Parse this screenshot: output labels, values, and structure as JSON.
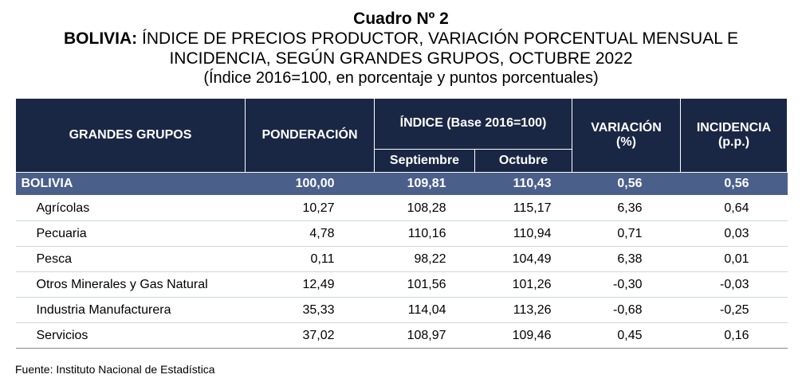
{
  "title": {
    "line1": "Cuadro Nº 2",
    "line2_bold": "BOLIVIA:",
    "line2_rest": " ÍNDICE DE PRECIOS PRODUCTOR, VARIACIÓN PORCENTUAL MENSUAL E",
    "line3": "INCIDENCIA, SEGÚN GRANDES GRUPOS, OCTUBRE 2022",
    "line4": "(Índice 2016=100, en porcentaje y puntos porcentuales)"
  },
  "headers": {
    "grupos": "GRANDES GRUPOS",
    "ponderacion": "PONDERACIÓN",
    "indice": "ÍNDICE (Base 2016=100)",
    "septiembre": "Septiembre",
    "octubre": "Octubre",
    "variacion_1": "VARIACIÓN",
    "variacion_2": "(%)",
    "incidencia_1": "INCIDENCIA",
    "incidencia_2": "(p.p.)"
  },
  "total": {
    "name": "BOLIVIA",
    "ponderacion": "100,00",
    "septiembre": "109,81",
    "octubre": "110,43",
    "variacion": "0,56",
    "incidencia": "0,56"
  },
  "rows": [
    {
      "name": "Agrícolas",
      "ponderacion": "10,27",
      "septiembre": "108,28",
      "octubre": "115,17",
      "variacion": "6,36",
      "incidencia": "0,64"
    },
    {
      "name": "Pecuaria",
      "ponderacion": "4,78",
      "septiembre": "110,16",
      "octubre": "110,94",
      "variacion": "0,71",
      "incidencia": "0,03"
    },
    {
      "name": "Pesca",
      "ponderacion": "0,11",
      "septiembre": "98,22",
      "octubre": "104,49",
      "variacion": "6,38",
      "incidencia": "0,01"
    },
    {
      "name": "Otros Minerales y Gas Natural",
      "ponderacion": "12,49",
      "septiembre": "101,56",
      "octubre": "101,26",
      "variacion": "-0,30",
      "incidencia": "-0,03"
    },
    {
      "name": "Industria Manufacturera",
      "ponderacion": "35,33",
      "septiembre": "114,04",
      "octubre": "113,26",
      "variacion": "-0,68",
      "incidencia": "-0,25"
    },
    {
      "name": "Servicios",
      "ponderacion": "37,02",
      "septiembre": "108,97",
      "octubre": "109,46",
      "variacion": "0,45",
      "incidencia": "0,16"
    }
  ],
  "source": "Fuente: Instituto Nacional de Estadística",
  "colors": {
    "header_bg": "#1a2744",
    "total_bg": "#4a5f8a"
  }
}
